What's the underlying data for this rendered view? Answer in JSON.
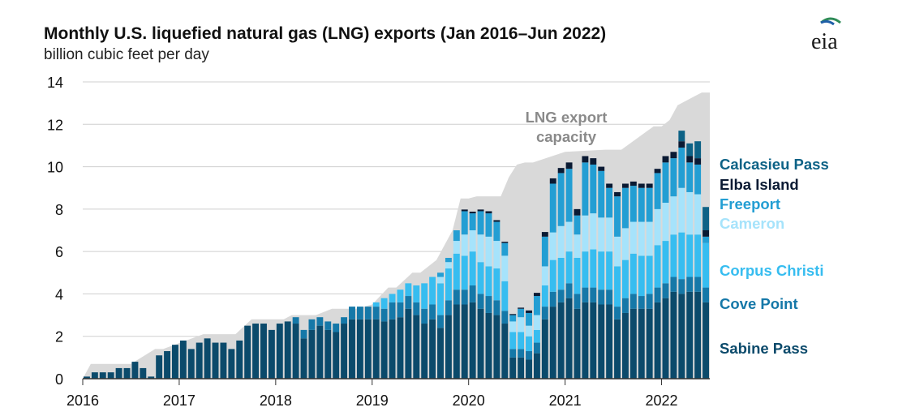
{
  "header": {
    "title": "Monthly U.S. liquefied natural gas (LNG) exports (Jan 2016–Jun 2022)",
    "subtitle": "billion cubic feet per day",
    "logo_text": "eia"
  },
  "chart_data": {
    "type": "bar",
    "stacked": true,
    "title": "Monthly U.S. liquefied natural gas (LNG) exports (Jan 2016–Jun 2022)",
    "ylabel": "billion cubic feet per day",
    "ylim": [
      0,
      14
    ],
    "yticks": [
      "0",
      "2",
      "4",
      "6",
      "8",
      "10",
      "12",
      "14"
    ],
    "xticks": [
      "2016",
      "2017",
      "2018",
      "2019",
      "2020",
      "2021",
      "2022"
    ],
    "grid": "horizontal",
    "legend_position": "right",
    "annotation": "LNG export capacity",
    "capacity": {
      "name": "LNG export capacity",
      "color": "#d9d9d9",
      "x": [
        "2016-01",
        "2016-02",
        "2016-07",
        "2016-10",
        "2016-11",
        "2017-04",
        "2017-08",
        "2017-10",
        "2018-02",
        "2018-03",
        "2018-06",
        "2018-08",
        "2018-11",
        "2019-01",
        "2019-03",
        "2019-04",
        "2019-06",
        "2019-07",
        "2019-09",
        "2019-10",
        "2019-11",
        "2019-12",
        "2020-01",
        "2020-02",
        "2020-03",
        "2020-04",
        "2020-05",
        "2020-06",
        "2020-07",
        "2020-08",
        "2020-09",
        "2021-01",
        "2021-06",
        "2021-08",
        "2021-12",
        "2022-01",
        "2022-02",
        "2022-03",
        "2022-04",
        "2022-05",
        "2022-06"
      ],
      "values": [
        0,
        0.7,
        0.7,
        1.4,
        1.4,
        2.1,
        2.1,
        2.8,
        2.8,
        3.0,
        3.0,
        3.3,
        3.3,
        3.5,
        4.3,
        4.3,
        5.0,
        5.0,
        5.6,
        6.3,
        7.0,
        8.5,
        8.5,
        8.6,
        8.6,
        8.6,
        8.6,
        9.5,
        10.1,
        10.2,
        10.2,
        10.7,
        10.8,
        10.8,
        11.9,
        11.9,
        12.2,
        12.9,
        13.1,
        13.3,
        13.5
      ]
    },
    "x": [
      "2016-01",
      "2016-02",
      "2016-03",
      "2016-04",
      "2016-05",
      "2016-06",
      "2016-07",
      "2016-08",
      "2016-09",
      "2016-10",
      "2016-11",
      "2016-12",
      "2017-01",
      "2017-02",
      "2017-03",
      "2017-04",
      "2017-05",
      "2017-06",
      "2017-07",
      "2017-08",
      "2017-09",
      "2017-10",
      "2017-11",
      "2017-12",
      "2018-01",
      "2018-02",
      "2018-03",
      "2018-04",
      "2018-05",
      "2018-06",
      "2018-07",
      "2018-08",
      "2018-09",
      "2018-10",
      "2018-11",
      "2018-12",
      "2019-01",
      "2019-02",
      "2019-03",
      "2019-04",
      "2019-05",
      "2019-06",
      "2019-07",
      "2019-08",
      "2019-09",
      "2019-10",
      "2019-11",
      "2019-12",
      "2020-01",
      "2020-02",
      "2020-03",
      "2020-04",
      "2020-05",
      "2020-06",
      "2020-07",
      "2020-08",
      "2020-09",
      "2020-10",
      "2020-11",
      "2020-12",
      "2021-01",
      "2021-02",
      "2021-03",
      "2021-04",
      "2021-05",
      "2021-06",
      "2021-07",
      "2021-08",
      "2021-09",
      "2021-10",
      "2021-11",
      "2021-12",
      "2022-01",
      "2022-02",
      "2022-03",
      "2022-04",
      "2022-05",
      "2022-06"
    ],
    "series": [
      {
        "name": "Sabine Pass",
        "color": "#0b4a6b",
        "values": [
          0.1,
          0.3,
          0.3,
          0.3,
          0.5,
          0.5,
          0.8,
          0.5,
          0.1,
          1.1,
          1.3,
          1.6,
          1.8,
          1.4,
          1.7,
          1.9,
          1.7,
          1.7,
          1.4,
          1.8,
          2.5,
          2.6,
          2.6,
          2.3,
          2.6,
          2.7,
          2.6,
          1.9,
          2.3,
          2.5,
          2.3,
          2.2,
          2.6,
          2.8,
          2.8,
          2.8,
          2.8,
          2.7,
          2.8,
          2.9,
          3.3,
          3.0,
          2.6,
          2.8,
          2.4,
          3.0,
          3.5,
          3.5,
          3.6,
          3.3,
          3.1,
          3.0,
          2.6,
          1.0,
          1.0,
          0.9,
          1.2,
          2.8,
          3.4,
          3.6,
          3.8,
          3.3,
          3.6,
          3.6,
          3.5,
          3.5,
          2.8,
          3.1,
          3.3,
          3.3,
          3.3,
          3.6,
          3.8,
          4.1,
          4.0,
          4.1,
          4.1,
          3.6
        ]
      },
      {
        "name": "Cove Point",
        "color": "#1578a8",
        "values": [
          0,
          0,
          0,
          0,
          0,
          0,
          0,
          0,
          0,
          0,
          0,
          0,
          0,
          0,
          0,
          0,
          0,
          0,
          0,
          0,
          0,
          0,
          0,
          0,
          0,
          0,
          0.3,
          0.4,
          0.5,
          0.4,
          0.4,
          0.4,
          0.3,
          0.6,
          0.6,
          0.6,
          0.6,
          0.6,
          0.8,
          0.7,
          0.6,
          0.6,
          0.7,
          0.7,
          0.6,
          0.7,
          0.7,
          0.7,
          0.8,
          0.7,
          0.8,
          0.7,
          0.6,
          0.4,
          0.4,
          0.4,
          0.5,
          0.6,
          0.7,
          0.6,
          0.7,
          0.7,
          0.7,
          0.7,
          0.7,
          0.7,
          0.6,
          0.7,
          0.7,
          0.6,
          0.7,
          0.7,
          0.7,
          0.7,
          0.7,
          0.7,
          0.7,
          0.7
        ]
      },
      {
        "name": "Corpus Christi",
        "color": "#37bdf0",
        "values": [
          0,
          0,
          0,
          0,
          0,
          0,
          0,
          0,
          0,
          0,
          0,
          0,
          0,
          0,
          0,
          0,
          0,
          0,
          0,
          0,
          0,
          0,
          0,
          0,
          0,
          0,
          0,
          0,
          0,
          0,
          0,
          0,
          0,
          0,
          0,
          0,
          0.2,
          0.5,
          0.4,
          0.6,
          0.6,
          0.8,
          1.2,
          1.3,
          1.5,
          1.5,
          1.7,
          1.6,
          1.6,
          1.5,
          1.4,
          1.5,
          1.4,
          0.8,
          0.8,
          0.7,
          0.6,
          1.0,
          1.5,
          1.5,
          1.5,
          1.7,
          1.7,
          1.8,
          1.8,
          1.8,
          1.9,
          1.8,
          1.9,
          1.9,
          1.8,
          2.0,
          2.0,
          2.0,
          2.2,
          2.0,
          2.0,
          2.1
        ]
      },
      {
        "name": "Cameron",
        "color": "#a6e3fb",
        "values": [
          0,
          0,
          0,
          0,
          0,
          0,
          0,
          0,
          0,
          0,
          0,
          0,
          0,
          0,
          0,
          0,
          0,
          0,
          0,
          0,
          0,
          0,
          0,
          0,
          0,
          0,
          0,
          0,
          0,
          0,
          0,
          0,
          0,
          0,
          0,
          0,
          0,
          0,
          0,
          0,
          0,
          0,
          0,
          0,
          0.3,
          0.3,
          0.6,
          1.0,
          1.0,
          1.3,
          1.4,
          1.3,
          1.2,
          0.5,
          0.7,
          0.5,
          0.7,
          0.9,
          1.3,
          1.5,
          1.4,
          1.1,
          1.7,
          1.7,
          1.6,
          1.6,
          1.4,
          1.5,
          1.5,
          1.6,
          1.6,
          1.7,
          1.8,
          1.8,
          2.1,
          2.0,
          1.9,
          0.0
        ]
      },
      {
        "name": "Freeport",
        "color": "#239ed3",
        "values": [
          0,
          0,
          0,
          0,
          0,
          0,
          0,
          0,
          0,
          0,
          0,
          0,
          0,
          0,
          0,
          0,
          0,
          0,
          0,
          0,
          0,
          0,
          0,
          0,
          0,
          0,
          0,
          0,
          0,
          0,
          0,
          0,
          0,
          0,
          0,
          0,
          0,
          0,
          0,
          0,
          0,
          0,
          0,
          0,
          0.2,
          0.2,
          0.5,
          1.1,
          0.8,
          1.1,
          1.1,
          0.9,
          0.6,
          0.3,
          0.4,
          0.6,
          0.9,
          1.4,
          2.3,
          2.5,
          2.5,
          0.9,
          2.5,
          2.3,
          2.2,
          1.4,
          1.9,
          1.9,
          1.7,
          1.6,
          1.6,
          1.7,
          1.9,
          1.8,
          1.9,
          1.4,
          1.4,
          0.3
        ]
      },
      {
        "name": "Elba Island",
        "color": "#0a1a33",
        "values": [
          0,
          0,
          0,
          0,
          0,
          0,
          0,
          0,
          0,
          0,
          0,
          0,
          0,
          0,
          0,
          0,
          0,
          0,
          0,
          0,
          0,
          0,
          0,
          0,
          0,
          0,
          0,
          0,
          0,
          0,
          0,
          0,
          0,
          0,
          0,
          0,
          0,
          0,
          0,
          0,
          0,
          0,
          0,
          0,
          0,
          0,
          0,
          0.08,
          0.08,
          0.08,
          0.1,
          0.08,
          0.06,
          0.05,
          0.05,
          0.12,
          0.15,
          0.22,
          0.25,
          0.24,
          0.3,
          0.3,
          0.3,
          0.3,
          0.2,
          0.2,
          0.2,
          0.2,
          0.2,
          0.2,
          0.2,
          0.2,
          0.3,
          0.3,
          0.3,
          0.3,
          0.3,
          0.3
        ]
      },
      {
        "name": "Calcasieu Pass",
        "color": "#0d6286",
        "values": [
          0,
          0,
          0,
          0,
          0,
          0,
          0,
          0,
          0,
          0,
          0,
          0,
          0,
          0,
          0,
          0,
          0,
          0,
          0,
          0,
          0,
          0,
          0,
          0,
          0,
          0,
          0,
          0,
          0,
          0,
          0,
          0,
          0,
          0,
          0,
          0,
          0,
          0,
          0,
          0,
          0,
          0,
          0,
          0,
          0,
          0,
          0,
          0,
          0,
          0,
          0,
          0,
          0,
          0,
          0,
          0,
          0,
          0,
          0,
          0,
          0,
          0,
          0,
          0,
          0,
          0,
          0,
          0,
          0,
          0,
          0,
          0,
          0,
          0,
          0.5,
          0.6,
          0.8,
          1.1
        ]
      }
    ]
  }
}
